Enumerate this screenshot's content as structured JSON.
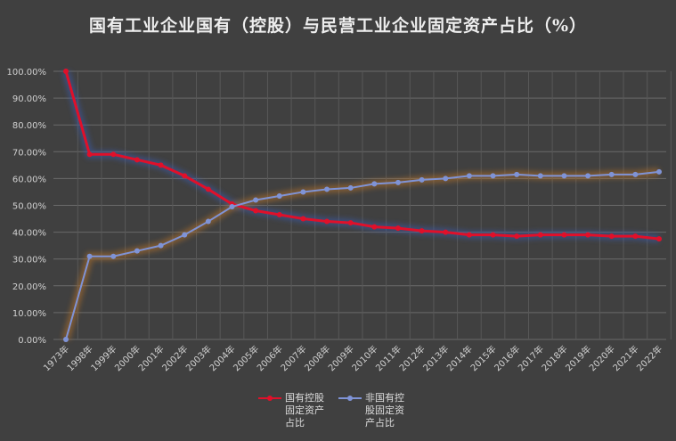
{
  "chart_data": {
    "type": "line",
    "title": "国有工业企业国有（控股）与民营工业企业固定资产占比（%）",
    "categories": [
      "1973年",
      "1998年",
      "1999年",
      "2000年",
      "2001年",
      "2002年",
      "2003年",
      "2004年",
      "2005年",
      "2006年",
      "2007年",
      "2008年",
      "2009年",
      "2010年",
      "2011年",
      "2012年",
      "2013年",
      "2014年",
      "2015年",
      "2016年",
      "2017年",
      "2018年",
      "2019年",
      "2020年",
      "2021年",
      "2022年"
    ],
    "series": [
      {
        "name": "国有控股固定资产占比",
        "color": "#e0102a",
        "values": [
          100,
          69,
          69,
          67,
          65,
          61,
          56,
          50.5,
          48,
          46.5,
          45,
          44,
          43.5,
          42,
          41.5,
          40.5,
          40,
          39,
          39,
          38.5,
          39,
          39,
          39,
          38.5,
          38.5,
          37.5
        ]
      },
      {
        "name": "非国有控股固定资产占比",
        "color": "#7f93d6",
        "values": [
          0,
          31,
          31,
          33,
          35,
          39,
          44,
          49.5,
          52,
          53.5,
          55,
          56,
          56.5,
          58,
          58.5,
          59.5,
          60,
          61,
          61,
          61.5,
          61,
          61,
          61,
          61.5,
          61.5,
          62.5
        ]
      }
    ],
    "yticks": [
      "0.00%",
      "10.00%",
      "20.00%",
      "30.00%",
      "40.00%",
      "50.00%",
      "60.00%",
      "70.00%",
      "80.00%",
      "90.00%",
      "100.00%"
    ],
    "ylim": [
      0,
      100
    ],
    "grid": true,
    "legend_position": "bottom",
    "background": "#404040"
  }
}
